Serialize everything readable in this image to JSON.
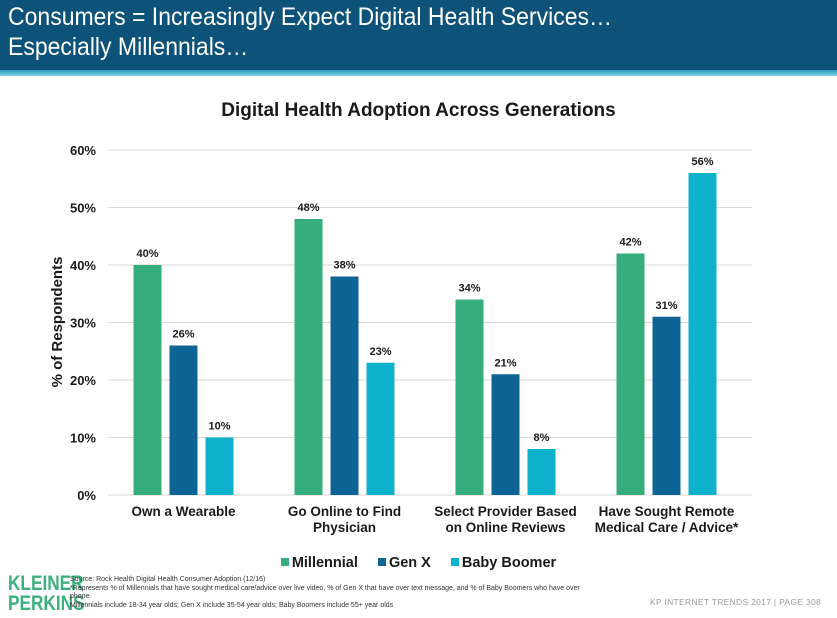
{
  "slide": {
    "title_line1": "Consumers = Increasingly Expect Digital Health Services…",
    "title_line2": "Especially Millennials…",
    "header_color": "#0d5279"
  },
  "chart_data": {
    "type": "bar",
    "title": "Digital Health Adoption Across Generations",
    "xlabel": "",
    "ylabel": "% of Respondents",
    "ylim": [
      0,
      60
    ],
    "yticks": [
      0,
      10,
      20,
      30,
      40,
      50,
      60
    ],
    "ytick_labels": [
      "0%",
      "10%",
      "20%",
      "30%",
      "40%",
      "50%",
      "60%"
    ],
    "grid": true,
    "legend_position": "bottom",
    "categories": [
      [
        "Own a Wearable"
      ],
      [
        "Go Online to Find",
        "Physician"
      ],
      [
        "Select Provider Based",
        "on Online Reviews"
      ],
      [
        "Have Sought Remote",
        "Medical Care / Advice*"
      ]
    ],
    "series": [
      {
        "name": "Millennial",
        "color": "#36ae7b",
        "values": [
          40,
          48,
          34,
          42
        ],
        "labels": [
          "40%",
          "48%",
          "34%",
          "42%"
        ]
      },
      {
        "name": "Gen X",
        "color": "#0f6496",
        "values": [
          26,
          38,
          21,
          31
        ],
        "labels": [
          "26%",
          "38%",
          "21%",
          "31%"
        ]
      },
      {
        "name": "Baby Boomer",
        "color": "#0fb2cc",
        "values": [
          10,
          23,
          8,
          56
        ],
        "labels": [
          "10%",
          "23%",
          "8%",
          "56%"
        ]
      }
    ]
  },
  "legend": {
    "items": [
      "Millennial",
      "Gen X",
      "Baby Boomer"
    ],
    "colors": [
      "#36ae7b",
      "#0f6496",
      "#0fb2cc"
    ]
  },
  "footer": {
    "logo_line1": "KLEINER",
    "logo_line2": "PERKINS",
    "source": "Source: Rock Health Digital Health Consumer Adoption (12/16)",
    "note1": "*Represents % of Millennials that have sought medical care/advice over live video, % of Gen X that have over text message, and % of Baby Boomers who have over phone",
    "note2": "Millennials include 18-34 year olds; Gen X include 35-54 year olds; Baby Boomers include 55+ year olds",
    "right": "KP INTERNET TRENDS 2017  |  PAGE 308"
  }
}
